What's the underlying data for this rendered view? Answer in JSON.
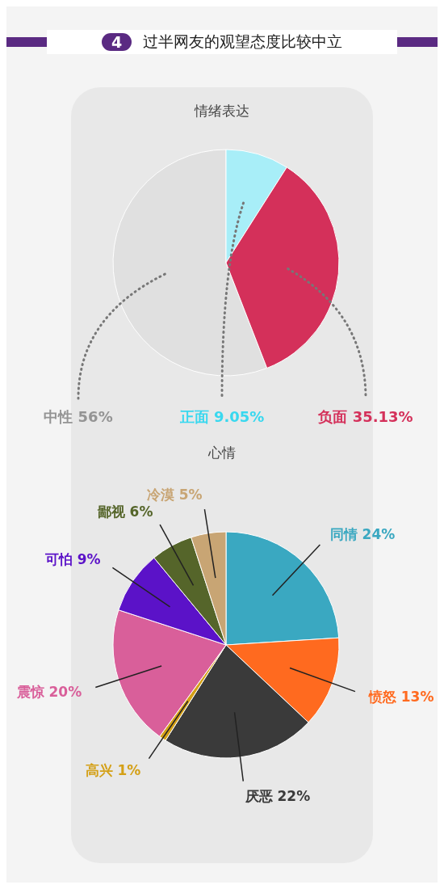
{
  "chart_data": [
    {
      "type": "pie",
      "title": "情绪表达",
      "annotations": [
        "4",
        "过半网友的观望态度比较中立"
      ],
      "categories": [
        "中性",
        "正面",
        "负面"
      ],
      "values": [
        56,
        9.05,
        35.13
      ],
      "colors": [
        "#e0e0e0",
        "#a8eef8",
        "#d4305a"
      ],
      "value_labels": [
        "56%",
        "9.05%",
        "35.13%"
      ]
    },
    {
      "type": "pie",
      "title": "心情",
      "categories": [
        "同情",
        "愤怒",
        "厌恶",
        "高兴",
        "震惊",
        "可怕",
        "鄙视",
        "冷漠"
      ],
      "values": [
        24,
        13,
        22,
        1,
        20,
        9,
        6,
        5
      ],
      "colors": [
        "#3aa8c1",
        "#ff6a1f",
        "#3a3a3a",
        "#d4a017",
        "#d95f9a",
        "#5b12c8",
        "#55652a",
        "#c8a574"
      ],
      "value_labels": [
        "24%",
        "13%",
        "22%",
        "1%",
        "20%",
        "9%",
        "6%",
        "5%"
      ]
    }
  ]
}
